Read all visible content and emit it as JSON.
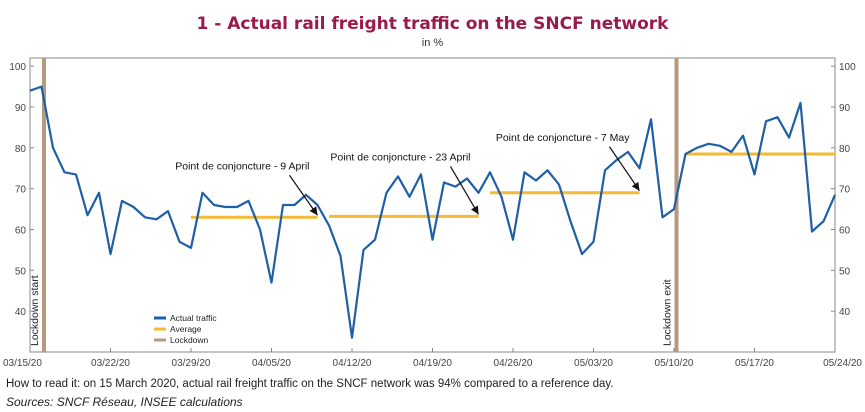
{
  "title": "1 - Actual rail freight traffic on the SNCF network",
  "subtitle": "in %",
  "note": "How to read it: on 15 March 2020, actual rail freight traffic on the SNCF network was 94% compared to a reference day.",
  "source": "Sources: SNCF Réseau, INSEE calculations",
  "colors": {
    "title": "#9b1a4b",
    "actual": "#1f5fa6",
    "average": "#f5b933",
    "lockdown": "#b59a7c",
    "frame": "#8a8a8a",
    "grid": "#dddddd"
  },
  "chart_data": {
    "type": "line",
    "x_tick_labels": [
      "03/15/20",
      "03/22/20",
      "03/29/20",
      "04/05/20",
      "04/12/20",
      "04/19/20",
      "04/26/20",
      "05/03/20",
      "05/10/20",
      "05/17/20",
      "05/24/20"
    ],
    "y_ticks": [
      40,
      50,
      60,
      70,
      80,
      90,
      100
    ],
    "ylim": [
      30,
      102
    ],
    "x_dates": [
      "2020-03-15",
      "2020-03-16",
      "2020-03-17",
      "2020-03-18",
      "2020-03-19",
      "2020-03-20",
      "2020-03-21",
      "2020-03-22",
      "2020-03-23",
      "2020-03-24",
      "2020-03-25",
      "2020-03-26",
      "2020-03-27",
      "2020-03-28",
      "2020-03-29",
      "2020-03-30",
      "2020-03-31",
      "2020-04-01",
      "2020-04-02",
      "2020-04-03",
      "2020-04-04",
      "2020-04-05",
      "2020-04-06",
      "2020-04-07",
      "2020-04-08",
      "2020-04-09",
      "2020-04-10",
      "2020-04-11",
      "2020-04-12",
      "2020-04-13",
      "2020-04-14",
      "2020-04-15",
      "2020-04-16",
      "2020-04-17",
      "2020-04-18",
      "2020-04-19",
      "2020-04-20",
      "2020-04-21",
      "2020-04-22",
      "2020-04-23",
      "2020-04-24",
      "2020-04-25",
      "2020-04-26",
      "2020-04-27",
      "2020-04-28",
      "2020-04-29",
      "2020-04-30",
      "2020-05-01",
      "2020-05-02",
      "2020-05-03",
      "2020-05-04",
      "2020-05-05",
      "2020-05-06",
      "2020-05-07",
      "2020-05-08",
      "2020-05-09",
      "2020-05-10",
      "2020-05-11",
      "2020-05-12",
      "2020-05-13",
      "2020-05-14",
      "2020-05-15",
      "2020-05-16",
      "2020-05-17",
      "2020-05-18",
      "2020-05-19",
      "2020-05-20",
      "2020-05-21",
      "2020-05-22",
      "2020-05-23",
      "2020-05-24"
    ],
    "series": [
      {
        "name": "Actual traffic",
        "values": [
          94,
          95,
          80,
          74,
          73.5,
          63.5,
          69,
          54,
          67,
          65.5,
          63,
          62.5,
          64.5,
          57,
          55.5,
          69,
          66,
          65.5,
          65.5,
          67,
          60,
          47,
          66,
          66,
          68.5,
          66,
          61,
          53.5,
          33.5,
          55,
          57.5,
          69,
          73,
          68,
          73.5,
          57.5,
          71.5,
          70.5,
          72.5,
          69,
          74,
          68,
          57.5,
          74,
          72,
          74.5,
          71,
          62,
          54,
          57,
          74.5,
          77,
          79,
          75,
          87,
          63,
          65,
          78.5,
          80,
          81,
          80.5,
          79,
          83,
          73.5,
          86.5,
          87.5,
          82.5,
          91,
          59.5,
          62,
          68.5
        ]
      },
      {
        "name": "Average",
        "segments": [
          {
            "from": "2020-03-29",
            "to": "2020-04-09",
            "value": 63
          },
          {
            "from": "2020-04-10",
            "to": "2020-04-23",
            "value": 63.2
          },
          {
            "from": "2020-04-24",
            "to": "2020-05-07",
            "value": 69
          },
          {
            "from": "2020-05-11",
            "to": "2020-05-24",
            "value": 78.5
          }
        ]
      }
    ],
    "lockdown": {
      "name": "Lockdown",
      "start_date": "2020-03-17",
      "start_label": "Lockdown start",
      "exit_date": "2020-05-11",
      "exit_label": "Lockdown exit"
    },
    "annotations": [
      {
        "text": "Point de conjoncture - 9 April",
        "date": "2020-04-09",
        "value": 63
      },
      {
        "text": "Point de conjoncture - 23 April",
        "date": "2020-04-23",
        "value": 63.2
      },
      {
        "text": "Point de conjoncture - 7 May",
        "date": "2020-05-07",
        "value": 69
      }
    ],
    "legend": {
      "position": "bottom-left",
      "items": [
        "Actual traffic",
        "Average",
        "Lockdown"
      ]
    }
  }
}
